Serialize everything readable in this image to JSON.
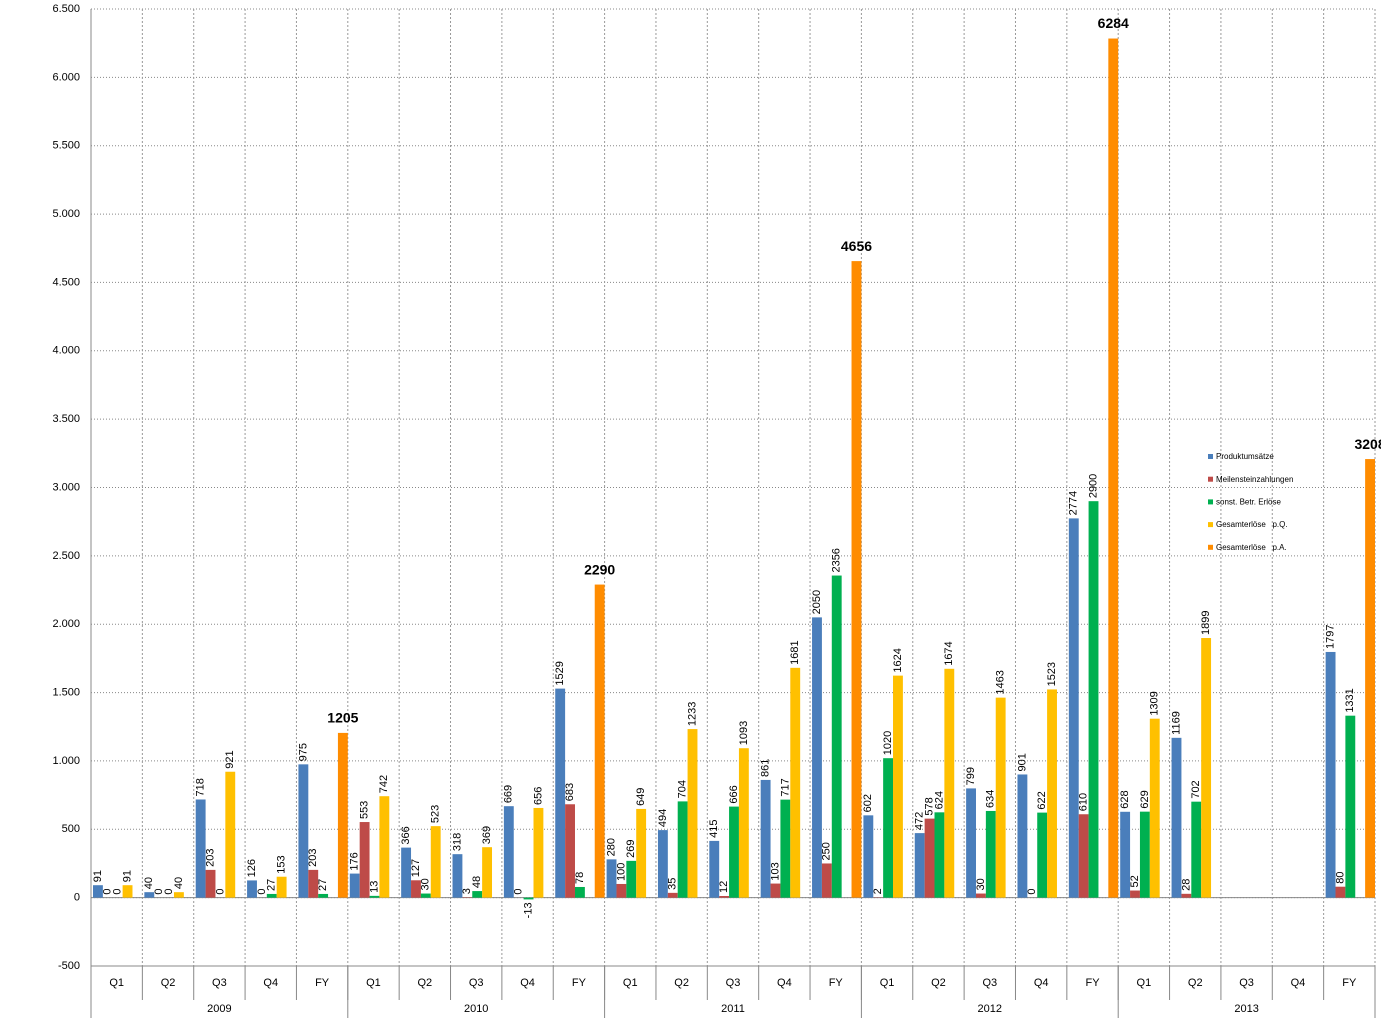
{
  "chart_data": {
    "type": "bar",
    "categories": [
      "Q1",
      "Q2",
      "Q3",
      "Q4",
      "FY",
      "Q1",
      "Q2",
      "Q3",
      "Q4",
      "FY",
      "Q1",
      "Q2",
      "Q3",
      "Q4",
      "FY",
      "Q1",
      "Q2",
      "Q3",
      "Q4",
      "FY",
      "Q1",
      "Q2",
      "Q3",
      "Q4",
      "FY"
    ],
    "x_groups": [
      "2009",
      "2010",
      "2011",
      "2012",
      "2013"
    ],
    "series": [
      {
        "name": "Produktumsätze",
        "color": "#4a7ebb",
        "values": [
          91,
          40,
          718,
          126,
          975,
          176,
          366,
          318,
          669,
          1529,
          280,
          494,
          415,
          861,
          2050,
          602,
          472,
          799,
          901,
          2774,
          628,
          1169,
          null,
          null,
          1797
        ]
      },
      {
        "name": "Meilensteinzahlungen",
        "color": "#be4b48",
        "values": [
          0,
          0,
          203,
          0,
          203,
          553,
          127,
          3,
          0,
          683,
          100,
          35,
          12,
          103,
          250,
          2,
          578,
          30,
          0,
          610,
          52,
          28,
          null,
          null,
          80
        ]
      },
      {
        "name": "sonst. Betr. Erlöse",
        "color": "#00b050",
        "values": [
          0,
          0,
          0,
          27,
          27,
          13,
          30,
          48,
          -13,
          78,
          269,
          704,
          666,
          717,
          2356,
          1020,
          624,
          634,
          622,
          2900,
          629,
          702,
          null,
          null,
          1331
        ]
      },
      {
        "name": "Gesamterlöse   p.Q.",
        "color": "#ffc000",
        "values": [
          91,
          40,
          921,
          153,
          null,
          742,
          523,
          369,
          656,
          null,
          649,
          1233,
          1093,
          1681,
          null,
          1624,
          1674,
          1463,
          1523,
          null,
          1309,
          1899,
          null,
          null,
          null
        ]
      },
      {
        "name": "Gesamterlöse   p.A.",
        "color": "#ff8c00",
        "values": [
          null,
          null,
          null,
          null,
          1205,
          null,
          null,
          null,
          null,
          2290,
          null,
          null,
          null,
          null,
          4656,
          null,
          null,
          null,
          null,
          6284,
          null,
          null,
          null,
          null,
          3208
        ]
      }
    ],
    "ylim": [
      -500,
      6500
    ],
    "yticks": [
      -500,
      0,
      500,
      {
        "value": 1000,
        "label": "1.000"
      },
      {
        "value": 1500,
        "label": "1.500"
      },
      {
        "value": 2000,
        "label": "2.000"
      },
      {
        "value": 2500,
        "label": "2.500"
      },
      {
        "value": 3000,
        "label": "3.000"
      },
      {
        "value": 3500,
        "label": "3.500"
      },
      {
        "value": 4000,
        "label": "4.000"
      },
      {
        "value": 4500,
        "label": "4.500"
      },
      {
        "value": 5000,
        "label": "5.000"
      },
      {
        "value": 5500,
        "label": "5.500"
      },
      {
        "value": 6000,
        "label": "6.000"
      },
      {
        "value": 6500,
        "label": "6.500"
      }
    ],
    "grid": true,
    "legend": "right"
  }
}
